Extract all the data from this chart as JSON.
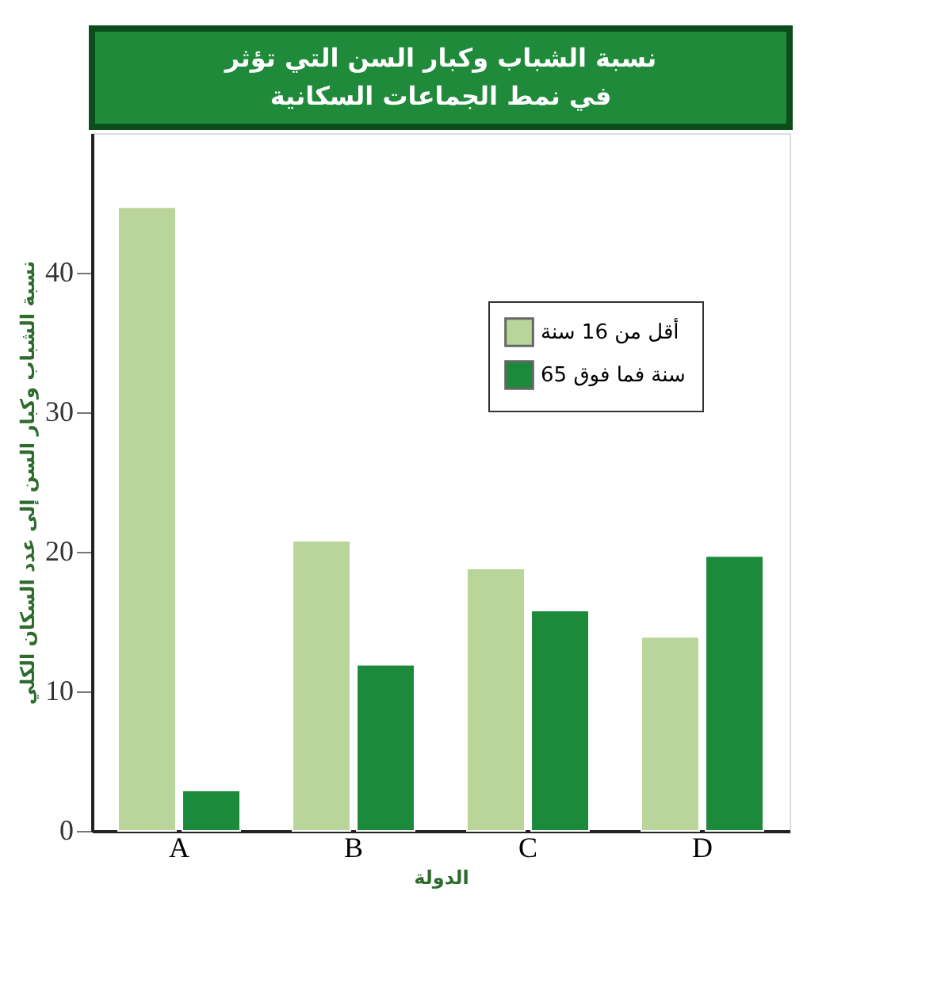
{
  "chart_data": {
    "type": "bar",
    "title": "نسبة الشباب وكبار السن التي تؤثر في نمط الجماعات السكانية",
    "xlabel": "الدولة",
    "ylabel": "نسبة الشباب وكبار السن إلى عدد السكان الكلي",
    "categories": [
      "A",
      "B",
      "C",
      "D"
    ],
    "series": [
      {
        "name": "أقل من 16 سنة",
        "color": "#b9d59a",
        "values": [
          44.7,
          20.8,
          18.8,
          13.9
        ]
      },
      {
        "name": "65 سنة فما فوق",
        "color": "#1b8a3a",
        "values": [
          2.9,
          11.9,
          15.8,
          19.7
        ]
      }
    ],
    "ylim": [
      0,
      50
    ],
    "yticks": [
      0,
      10,
      20,
      30,
      40
    ],
    "grid": false,
    "legend": "top right"
  }
}
